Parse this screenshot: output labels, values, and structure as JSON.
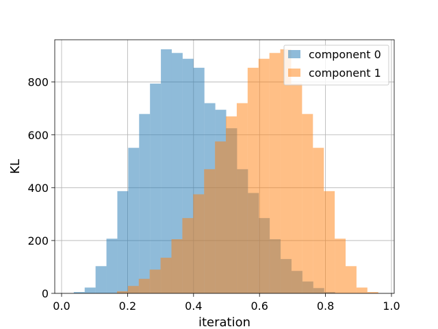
{
  "chart_data": {
    "type": "bar",
    "title": "",
    "xlabel": "iteration",
    "ylabel": "KL",
    "xlim": [
      0.0,
      1.0
    ],
    "ylim": [
      0,
      960
    ],
    "xticks": [
      "0.0",
      "0.2",
      "0.4",
      "0.6",
      "0.8",
      "1.0"
    ],
    "yticks": [
      "0",
      "200",
      "400",
      "600",
      "800"
    ],
    "grid": true,
    "legend_position": "top-right",
    "series": [
      {
        "name": "component 0",
        "color": "#1f77b4",
        "bins": [
          {
            "x0": 0.037,
            "x1": 0.07,
            "y": 5
          },
          {
            "x0": 0.07,
            "x1": 0.103,
            "y": 22
          },
          {
            "x0": 0.103,
            "x1": 0.136,
            "y": 103
          },
          {
            "x0": 0.136,
            "x1": 0.169,
            "y": 207
          },
          {
            "x0": 0.169,
            "x1": 0.202,
            "y": 387
          },
          {
            "x0": 0.202,
            "x1": 0.235,
            "y": 551
          },
          {
            "x0": 0.235,
            "x1": 0.268,
            "y": 679
          },
          {
            "x0": 0.268,
            "x1": 0.301,
            "y": 794
          },
          {
            "x0": 0.301,
            "x1": 0.334,
            "y": 924
          },
          {
            "x0": 0.334,
            "x1": 0.367,
            "y": 910
          },
          {
            "x0": 0.367,
            "x1": 0.4,
            "y": 888
          },
          {
            "x0": 0.4,
            "x1": 0.433,
            "y": 854
          },
          {
            "x0": 0.433,
            "x1": 0.466,
            "y": 720
          },
          {
            "x0": 0.466,
            "x1": 0.499,
            "y": 695
          },
          {
            "x0": 0.499,
            "x1": 0.532,
            "y": 625
          },
          {
            "x0": 0.532,
            "x1": 0.565,
            "y": 470
          },
          {
            "x0": 0.565,
            "x1": 0.598,
            "y": 380
          },
          {
            "x0": 0.598,
            "x1": 0.631,
            "y": 285
          },
          {
            "x0": 0.631,
            "x1": 0.664,
            "y": 205
          },
          {
            "x0": 0.664,
            "x1": 0.697,
            "y": 130
          },
          {
            "x0": 0.697,
            "x1": 0.73,
            "y": 85
          },
          {
            "x0": 0.73,
            "x1": 0.763,
            "y": 45
          },
          {
            "x0": 0.763,
            "x1": 0.796,
            "y": 20
          },
          {
            "x0": 0.796,
            "x1": 0.829,
            "y": 5
          }
        ]
      },
      {
        "name": "component 1",
        "color": "#ff7f0e",
        "bins": [
          {
            "x0": 0.168,
            "x1": 0.201,
            "y": 8
          },
          {
            "x0": 0.201,
            "x1": 0.234,
            "y": 28
          },
          {
            "x0": 0.234,
            "x1": 0.267,
            "y": 55
          },
          {
            "x0": 0.267,
            "x1": 0.3,
            "y": 90
          },
          {
            "x0": 0.3,
            "x1": 0.333,
            "y": 135
          },
          {
            "x0": 0.333,
            "x1": 0.366,
            "y": 205
          },
          {
            "x0": 0.366,
            "x1": 0.399,
            "y": 285
          },
          {
            "x0": 0.399,
            "x1": 0.432,
            "y": 375
          },
          {
            "x0": 0.432,
            "x1": 0.465,
            "y": 470
          },
          {
            "x0": 0.465,
            "x1": 0.498,
            "y": 575
          },
          {
            "x0": 0.498,
            "x1": 0.531,
            "y": 670
          },
          {
            "x0": 0.531,
            "x1": 0.564,
            "y": 720
          },
          {
            "x0": 0.564,
            "x1": 0.597,
            "y": 854
          },
          {
            "x0": 0.597,
            "x1": 0.63,
            "y": 888
          },
          {
            "x0": 0.63,
            "x1": 0.663,
            "y": 910
          },
          {
            "x0": 0.663,
            "x1": 0.696,
            "y": 924
          },
          {
            "x0": 0.696,
            "x1": 0.729,
            "y": 794
          },
          {
            "x0": 0.729,
            "x1": 0.762,
            "y": 679
          },
          {
            "x0": 0.762,
            "x1": 0.795,
            "y": 551
          },
          {
            "x0": 0.795,
            "x1": 0.828,
            "y": 387
          },
          {
            "x0": 0.828,
            "x1": 0.861,
            "y": 207
          },
          {
            "x0": 0.861,
            "x1": 0.894,
            "y": 103
          },
          {
            "x0": 0.894,
            "x1": 0.927,
            "y": 22
          },
          {
            "x0": 0.927,
            "x1": 0.96,
            "y": 5
          }
        ]
      }
    ]
  }
}
